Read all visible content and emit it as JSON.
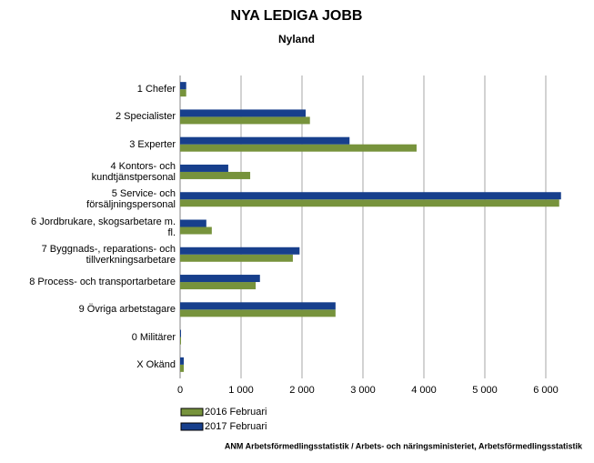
{
  "chart_data": {
    "type": "bar",
    "orientation": "horizontal",
    "title": "NYA LEDIGA JOBB",
    "subtitle": "Nyland",
    "categories": [
      "1 Chefer",
      "2 Specialister",
      "3 Experter",
      "4 Kontors- och\nkundtjänstpersonal",
      "5 Service- och\nförsäljningspersonal",
      "6 Jordbrukare, skogsarbetare m.\nfl.",
      "7 Byggnads-, reparations- och\ntillverkningsarbetare",
      "8 Process- och transportarbetare",
      "9 Övriga arbetstagare",
      "0 Militärer",
      "X Okänd"
    ],
    "series": [
      {
        "name": "2016 Februari",
        "color": "#77933c",
        "values": [
          100,
          2130,
          3880,
          1150,
          6220,
          520,
          1850,
          1240,
          2550,
          15,
          60
        ]
      },
      {
        "name": "2017 Februari",
        "color": "#173f8c",
        "values": [
          100,
          2060,
          2780,
          790,
          6250,
          430,
          1960,
          1310,
          2550,
          15,
          60
        ]
      }
    ],
    "xlim": [
      0,
      6500
    ],
    "xticks": [
      0,
      {
        "value": 1000,
        "label": "1 000"
      },
      {
        "value": 2000,
        "label": "2 000"
      },
      {
        "value": 3000,
        "label": "3 000"
      },
      {
        "value": 4000,
        "label": "4 000"
      },
      {
        "value": 5000,
        "label": "5 000"
      },
      {
        "value": 6000,
        "label": "6 000"
      }
    ],
    "grid": true,
    "legend": "bottom-left",
    "source": "ANM Arbetsförmedlingsstatistik / Arbets- och näringsministeriet, Arbetsförmedlingsstatistik"
  }
}
